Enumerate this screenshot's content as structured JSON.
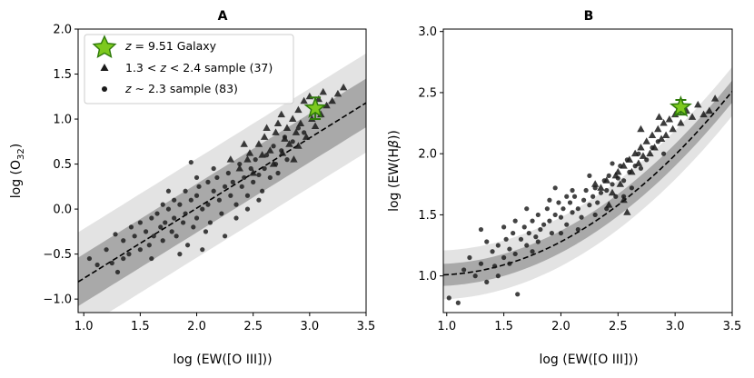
{
  "chart_data": [
    {
      "type": "scatter",
      "title": "A",
      "xlabel": "log (EW([O III]))",
      "ylabel": "log (O",
      "ylabel_sub": "32",
      "ylabel_end": ")",
      "xlim": [
        0.95,
        3.5
      ],
      "ylim": [
        -1.15,
        2.0
      ],
      "xticks": [
        1.0,
        1.5,
        2.0,
        2.5,
        3.0,
        3.5
      ],
      "xtick_labels": [
        "1.0",
        "1.5",
        "2.0",
        "2.5",
        "3.0",
        "3.5"
      ],
      "yticks": [
        -1.0,
        -0.5,
        0.0,
        0.5,
        1.0,
        1.5,
        2.0
      ],
      "ytick_labels": [
        "−1.0",
        "−0.5",
        "0.0",
        "0.5",
        "1.0",
        "1.5",
        "2.0"
      ],
      "fit": {
        "slope": 0.78,
        "intercept": -1.55,
        "inner_band": 0.27,
        "outer_band": 0.55,
        "x_range": [
          0.95,
          3.5
        ]
      },
      "galaxy": {
        "x": 3.05,
        "y": 1.12,
        "yerr": 0.12,
        "color": "#7dc91e",
        "edge": "#2f7a0b"
      },
      "legend": {
        "position": "upper-left",
        "entries": [
          {
            "marker": "star",
            "z_prefix": "z",
            "label": " = 9.51 Galaxy"
          },
          {
            "marker": "triangle",
            "pre": "1.3 < ",
            "z_prefix": "z",
            "label": " < 2.4 sample (37)"
          },
          {
            "marker": "circle",
            "z_prefix": "z",
            "label": " ∼ 2.3 sample (83)"
          }
        ]
      },
      "series": [
        {
          "name": "1.3 < z < 2.4 sample (37)",
          "marker": "triangle",
          "points": [
            [
              2.45,
              0.55
            ],
            [
              2.55,
              0.72
            ],
            [
              2.6,
              0.8
            ],
            [
              2.65,
              0.65
            ],
            [
              2.7,
              0.85
            ],
            [
              2.72,
              0.95
            ],
            [
              2.75,
              1.05
            ],
            [
              2.78,
              0.78
            ],
            [
              2.8,
              0.9
            ],
            [
              2.82,
              0.72
            ],
            [
              2.85,
              1.0
            ],
            [
              2.88,
              0.85
            ],
            [
              2.9,
              1.1
            ],
            [
              2.92,
              0.95
            ],
            [
              2.95,
              1.2
            ],
            [
              2.97,
              0.8
            ],
            [
              3.0,
              1.25
            ],
            [
              3.02,
              1.0
            ],
            [
              3.05,
              0.92
            ],
            [
              3.1,
              1.05
            ],
            [
              3.15,
              1.15
            ],
            [
              3.2,
              1.2
            ],
            [
              3.25,
              1.28
            ],
            [
              3.3,
              1.35
            ],
            [
              2.38,
              0.45
            ],
            [
              2.5,
              0.4
            ],
            [
              2.58,
              0.6
            ],
            [
              2.68,
              0.5
            ],
            [
              2.9,
              0.7
            ],
            [
              3.08,
              1.22
            ],
            [
              2.62,
              0.9
            ],
            [
              2.47,
              0.62
            ],
            [
              2.42,
              0.72
            ],
            [
              2.3,
              0.55
            ],
            [
              2.76,
              0.62
            ],
            [
              2.86,
              0.55
            ],
            [
              3.12,
              1.3
            ]
          ]
        },
        {
          "name": "z ~ 2.3 sample (83)",
          "marker": "circle",
          "points": [
            [
              1.05,
              -0.55
            ],
            [
              1.12,
              -0.62
            ],
            [
              1.2,
              -0.45
            ],
            [
              1.25,
              -0.6
            ],
            [
              1.3,
              -0.7
            ],
            [
              1.35,
              -0.35
            ],
            [
              1.4,
              -0.5
            ],
            [
              1.42,
              -0.2
            ],
            [
              1.45,
              -0.3
            ],
            [
              1.5,
              -0.45
            ],
            [
              1.5,
              -0.15
            ],
            [
              1.55,
              -0.25
            ],
            [
              1.58,
              -0.4
            ],
            [
              1.6,
              -0.1
            ],
            [
              1.62,
              -0.3
            ],
            [
              1.65,
              -0.05
            ],
            [
              1.68,
              -0.2
            ],
            [
              1.7,
              0.05
            ],
            [
              1.7,
              -0.35
            ],
            [
              1.72,
              -0.15
            ],
            [
              1.75,
              0.0
            ],
            [
              1.78,
              -0.25
            ],
            [
              1.8,
              0.1
            ],
            [
              1.8,
              -0.1
            ],
            [
              1.82,
              -0.3
            ],
            [
              1.85,
              0.05
            ],
            [
              1.88,
              -0.15
            ],
            [
              1.9,
              0.2
            ],
            [
              1.9,
              -0.05
            ],
            [
              1.92,
              -0.4
            ],
            [
              1.95,
              0.1
            ],
            [
              1.97,
              -0.2
            ],
            [
              2.0,
              0.15
            ],
            [
              2.0,
              -0.1
            ],
            [
              2.02,
              0.25
            ],
            [
              2.05,
              0.0
            ],
            [
              2.08,
              -0.25
            ],
            [
              2.1,
              0.3
            ],
            [
              2.1,
              0.05
            ],
            [
              2.12,
              -0.15
            ],
            [
              2.15,
              0.2
            ],
            [
              2.18,
              0.35
            ],
            [
              2.2,
              0.1
            ],
            [
              2.22,
              -0.05
            ],
            [
              2.25,
              0.25
            ],
            [
              2.28,
              0.4
            ],
            [
              2.3,
              0.15
            ],
            [
              2.32,
              0.3
            ],
            [
              2.35,
              0.05
            ],
            [
              2.38,
              0.5
            ],
            [
              2.4,
              0.25
            ],
            [
              2.42,
              0.35
            ],
            [
              2.45,
              0.15
            ],
            [
              2.48,
              0.45
            ],
            [
              2.5,
              0.3
            ],
            [
              2.52,
              0.55
            ],
            [
              2.55,
              0.38
            ],
            [
              2.58,
              0.2
            ],
            [
              2.6,
              0.45
            ],
            [
              2.62,
              0.6
            ],
            [
              2.65,
              0.35
            ],
            [
              2.68,
              0.7
            ],
            [
              2.7,
              0.5
            ],
            [
              2.72,
              0.4
            ],
            [
              2.75,
              0.65
            ],
            [
              2.78,
              0.8
            ],
            [
              2.8,
              0.55
            ],
            [
              2.85,
              0.75
            ],
            [
              2.9,
              0.9
            ],
            [
              2.95,
              0.85
            ],
            [
              1.95,
              0.52
            ],
            [
              2.05,
              -0.45
            ],
            [
              1.6,
              -0.55
            ],
            [
              2.25,
              -0.3
            ],
            [
              1.35,
              -0.55
            ],
            [
              1.85,
              -0.5
            ],
            [
              2.15,
              0.45
            ],
            [
              2.35,
              -0.1
            ],
            [
              2.0,
              0.35
            ],
            [
              1.75,
              0.2
            ],
            [
              2.45,
              0.0
            ],
            [
              2.55,
              0.1
            ],
            [
              1.28,
              -0.28
            ]
          ]
        }
      ]
    },
    {
      "type": "scatter",
      "title": "B",
      "xlabel": "log (EW([O III]))",
      "ylabel": "log (EW(H",
      "ylabel_greek": "β",
      "ylabel_end": "))",
      "xlim": [
        0.97,
        3.5
      ],
      "ylim": [
        0.7,
        3.02
      ],
      "xticks": [
        1.0,
        1.5,
        2.0,
        2.5,
        3.0,
        3.5
      ],
      "xtick_labels": [
        "1.0",
        "1.5",
        "2.0",
        "2.5",
        "3.0",
        "3.5"
      ],
      "yticks": [
        1.0,
        1.5,
        2.0,
        2.5,
        3.0
      ],
      "ytick_labels": [
        "1.0",
        "1.5",
        "2.0",
        "2.5",
        "3.0"
      ],
      "fit": {
        "quad_a": 0.22,
        "quad_b": -0.39,
        "quad_c": 1.18,
        "inner_band": 0.09,
        "outer_band": 0.2,
        "x_range": [
          0.97,
          3.5
        ]
      },
      "galaxy": {
        "x": 3.05,
        "y": 2.38,
        "yerr": 0.06,
        "color": "#7dc91e",
        "edge": "#2f7a0b"
      },
      "series": [
        {
          "name": "1.3 < z < 2.4 sample (37)",
          "marker": "triangle",
          "points": [
            [
              2.3,
              1.75
            ],
            [
              2.35,
              1.72
            ],
            [
              2.4,
              1.78
            ],
            [
              2.45,
              1.68
            ],
            [
              2.48,
              1.82
            ],
            [
              2.5,
              1.85
            ],
            [
              2.52,
              1.75
            ],
            [
              2.55,
              1.9
            ],
            [
              2.58,
              1.52
            ],
            [
              2.6,
              1.95
            ],
            [
              2.62,
              1.85
            ],
            [
              2.65,
              2.0
            ],
            [
              2.68,
              1.92
            ],
            [
              2.7,
              2.05
            ],
            [
              2.72,
              1.98
            ],
            [
              2.75,
              2.1
            ],
            [
              2.78,
              2.0
            ],
            [
              2.8,
              2.15
            ],
            [
              2.82,
              2.05
            ],
            [
              2.85,
              2.2
            ],
            [
              2.88,
              2.12
            ],
            [
              2.9,
              2.25
            ],
            [
              2.92,
              2.15
            ],
            [
              2.95,
              2.28
            ],
            [
              2.98,
              2.2
            ],
            [
              3.0,
              2.32
            ],
            [
              3.05,
              2.25
            ],
            [
              3.1,
              2.35
            ],
            [
              3.15,
              2.3
            ],
            [
              3.2,
              2.4
            ],
            [
              3.25,
              2.32
            ],
            [
              3.3,
              2.35
            ],
            [
              3.35,
              2.45
            ],
            [
              2.42,
              1.58
            ],
            [
              2.55,
              1.62
            ],
            [
              2.86,
              2.3
            ],
            [
              2.7,
              2.2
            ]
          ]
        },
        {
          "name": "z ~ 2.3 sample (83)",
          "marker": "circle",
          "points": [
            [
              1.02,
              0.82
            ],
            [
              1.1,
              0.78
            ],
            [
              1.15,
              1.05
            ],
            [
              1.2,
              1.15
            ],
            [
              1.25,
              1.0
            ],
            [
              1.3,
              1.1
            ],
            [
              1.35,
              0.95
            ],
            [
              1.4,
              1.2
            ],
            [
              1.42,
              1.08
            ],
            [
              1.45,
              1.25
            ],
            [
              1.5,
              1.15
            ],
            [
              1.52,
              1.3
            ],
            [
              1.55,
              1.22
            ],
            [
              1.58,
              1.35
            ],
            [
              1.6,
              1.18
            ],
            [
              1.62,
              0.85
            ],
            [
              1.65,
              1.3
            ],
            [
              1.68,
              1.4
            ],
            [
              1.7,
              1.25
            ],
            [
              1.72,
              1.35
            ],
            [
              1.75,
              1.45
            ],
            [
              1.78,
              1.32
            ],
            [
              1.8,
              1.5
            ],
            [
              1.82,
              1.38
            ],
            [
              1.85,
              1.42
            ],
            [
              1.88,
              1.55
            ],
            [
              1.9,
              1.45
            ],
            [
              1.92,
              1.35
            ],
            [
              1.95,
              1.5
            ],
            [
              1.98,
              1.6
            ],
            [
              2.0,
              1.48
            ],
            [
              2.02,
              1.55
            ],
            [
              2.05,
              1.42
            ],
            [
              2.08,
              1.6
            ],
            [
              2.1,
              1.52
            ],
            [
              2.12,
              1.65
            ],
            [
              2.15,
              1.55
            ],
            [
              2.18,
              1.48
            ],
            [
              2.2,
              1.62
            ],
            [
              2.22,
              1.7
            ],
            [
              2.25,
              1.58
            ],
            [
              2.28,
              1.65
            ],
            [
              2.3,
              1.72
            ],
            [
              2.32,
              1.6
            ],
            [
              2.35,
              1.68
            ],
            [
              2.38,
              1.78
            ],
            [
              2.4,
              1.7
            ],
            [
              2.42,
              1.82
            ],
            [
              2.45,
              1.75
            ],
            [
              2.48,
              1.65
            ],
            [
              2.5,
              1.8
            ],
            [
              2.52,
              1.9
            ],
            [
              2.55,
              1.78
            ],
            [
              2.58,
              1.95
            ],
            [
              2.6,
              1.85
            ],
            [
              2.62,
              1.72
            ],
            [
              2.65,
              1.9
            ],
            [
              2.68,
              2.0
            ],
            [
              2.7,
              1.88
            ],
            [
              2.75,
              1.95
            ],
            [
              2.8,
              2.05
            ],
            [
              2.85,
              2.1
            ],
            [
              2.9,
              2.0
            ],
            [
              1.3,
              1.38
            ],
            [
              1.5,
              1.4
            ],
            [
              1.7,
              1.55
            ],
            [
              1.9,
              1.62
            ],
            [
              2.1,
              1.7
            ],
            [
              2.0,
              1.35
            ],
            [
              1.8,
              1.28
            ],
            [
              1.6,
              1.45
            ],
            [
              2.4,
              1.55
            ],
            [
              2.25,
              1.82
            ],
            [
              1.45,
              1.0
            ],
            [
              1.35,
              1.28
            ],
            [
              2.15,
              1.38
            ],
            [
              1.95,
              1.72
            ],
            [
              2.45,
              1.92
            ],
            [
              2.55,
              1.65
            ],
            [
              1.75,
              1.2
            ],
            [
              2.05,
              1.65
            ],
            [
              1.55,
              1.1
            ],
            [
              2.3,
              1.5
            ]
          ]
        }
      ]
    }
  ]
}
